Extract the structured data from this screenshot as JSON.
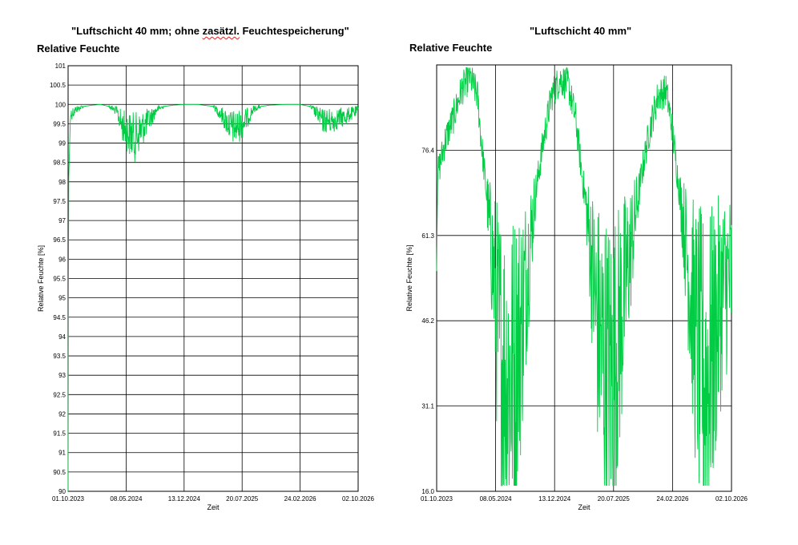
{
  "captions": {
    "left_pre": "\"Luftschicht 40 mm; ohne ",
    "left_wavy": "zasätzl.",
    "left_post": " Feuchtespeicherung\"",
    "right": "\"Luftschicht 40 mm\""
  },
  "colors": {
    "series": "#00cc44",
    "grid": "#000000",
    "axis": "#000000"
  },
  "chart_data": [
    {
      "type": "line",
      "title": "Relative Feuchte",
      "xlabel": "Zeit",
      "ylabel": "Relative Feuchte [%]",
      "xlim": [
        "2023-10-01",
        "2026-10-02"
      ],
      "ylim": [
        90,
        101
      ],
      "x_ticks": [
        "01.10.2023",
        "08.05.2024",
        "13.12.2024",
        "20.07.2025",
        "24.02.2026",
        "02.10.2026"
      ],
      "y_ticks": [
        "90",
        "90.5",
        "91",
        "91.5",
        "92",
        "92.5",
        "93",
        "93.5",
        "94",
        "94.5",
        "95",
        "95.5",
        "96",
        "96.5",
        "97",
        "97.5",
        "98",
        "98.5",
        "99",
        "99.5",
        "100",
        "100.5",
        "101"
      ],
      "grid": true,
      "series": [
        {
          "values_note": "",
          "x": [
            "2023-10-01",
            "2023-10-03",
            "2023-10-10",
            "2023-11-01",
            "2023-12-01",
            "2024-01-01",
            "2024-02-01",
            "2024-03-01",
            "2024-04-01",
            "2024-04-20",
            "2024-05-08",
            "2024-05-20",
            "2024-06-10",
            "2024-07-01",
            "2024-07-20",
            "2024-08-10",
            "2024-09-01",
            "2024-10-01",
            "2024-11-01",
            "2024-12-13",
            "2025-02-01",
            "2025-04-01",
            "2025-05-01",
            "2025-05-20",
            "2025-06-10",
            "2025-07-01",
            "2025-07-20",
            "2025-08-10",
            "2025-09-01",
            "2025-10-01",
            "2025-11-01",
            "2026-01-01",
            "2026-02-24",
            "2026-04-01",
            "2026-05-01",
            "2026-05-20",
            "2026-06-10",
            "2026-07-01",
            "2026-07-20",
            "2026-08-10",
            "2026-09-01",
            "2026-10-02"
          ],
          "y": [
            90.0,
            98.0,
            99.7,
            99.85,
            99.95,
            99.98,
            100.0,
            99.95,
            99.8,
            99.4,
            99.2,
            99.1,
            99.0,
            99.2,
            99.4,
            99.6,
            99.85,
            99.95,
            99.98,
            100.0,
            100.0,
            99.95,
            99.7,
            99.5,
            99.3,
            99.3,
            99.4,
            99.6,
            99.85,
            99.95,
            99.98,
            100.0,
            100.0,
            99.95,
            99.7,
            99.5,
            99.5,
            99.5,
            99.6,
            99.6,
            99.7,
            99.8
          ]
        }
      ]
    },
    {
      "type": "line",
      "title": "Relative Feuchte",
      "xlabel": "Zeit",
      "ylabel": "Relative Feuchte [%]",
      "xlim": [
        "2023-10-01",
        "2026-10-02"
      ],
      "ylim": [
        16.0,
        91.5
      ],
      "x_ticks": [
        "01.10.2023",
        "08.05.2024",
        "13.12.2024",
        "20.07.2025",
        "24.02.2026",
        "02.10.2026"
      ],
      "y_ticks": [
        "16.0",
        "31.1",
        "46.2",
        "61.3",
        "76.4"
      ],
      "grid": true,
      "series": [
        {
          "values_note": "",
          "x": [
            "2023-10-01",
            "2023-10-05",
            "2023-11-01",
            "2023-12-01",
            "2024-01-01",
            "2024-02-01",
            "2024-03-01",
            "2024-03-15",
            "2024-04-01",
            "2024-04-20",
            "2024-05-08",
            "2024-05-20",
            "2024-06-10",
            "2024-07-01",
            "2024-07-20",
            "2024-08-10",
            "2024-09-01",
            "2024-10-01",
            "2024-11-01",
            "2024-12-01",
            "2025-01-01",
            "2025-02-01",
            "2025-03-01",
            "2025-03-20",
            "2025-04-10",
            "2025-05-01",
            "2025-05-20",
            "2025-06-10",
            "2025-07-01",
            "2025-07-20",
            "2025-08-10",
            "2025-09-01",
            "2025-10-01",
            "2025-11-01",
            "2025-12-01",
            "2026-01-01",
            "2026-02-01",
            "2026-02-24",
            "2026-03-15",
            "2026-04-10",
            "2026-05-01",
            "2026-05-20",
            "2026-06-10",
            "2026-07-01",
            "2026-07-20",
            "2026-08-10",
            "2026-09-01",
            "2026-10-02"
          ],
          "y": [
            55.0,
            72.0,
            78.0,
            82.0,
            87.0,
            89.5,
            86.0,
            78.0,
            70.0,
            60.0,
            50.0,
            42.0,
            38.0,
            36.0,
            40.0,
            45.0,
            55.0,
            68.0,
            78.0,
            86.0,
            89.0,
            88.0,
            82.0,
            74.0,
            66.0,
            56.0,
            46.0,
            40.0,
            36.0,
            38.0,
            44.0,
            52.0,
            62.0,
            72.0,
            80.0,
            86.0,
            87.0,
            80.0,
            72.0,
            62.0,
            52.0,
            44.0,
            38.0,
            36.0,
            40.0,
            46.0,
            52.0,
            54.0
          ]
        }
      ]
    }
  ]
}
